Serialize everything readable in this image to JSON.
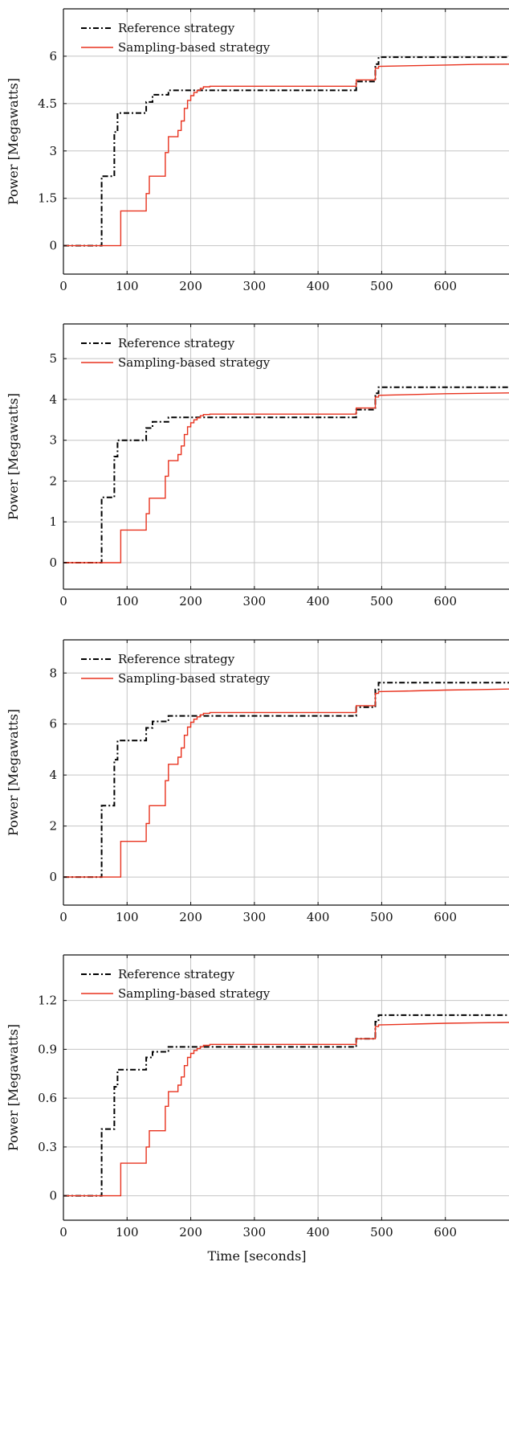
{
  "chart_data": [
    {
      "type": "line",
      "ylabel": "Power [Megawatts]",
      "xlabel": "",
      "xlim": [
        0,
        700
      ],
      "ylim": [
        -0.9,
        7.5
      ],
      "xticks": [
        0,
        100,
        200,
        300,
        400,
        500,
        600
      ],
      "yticks": [
        0,
        1.5,
        3,
        4.5,
        6
      ],
      "ytick_labels": [
        "0",
        "1.5",
        "3",
        "4.5",
        "6"
      ],
      "grid": true,
      "legend_position": "top-left",
      "series": [
        {
          "name": "Reference strategy",
          "color": "#000000",
          "style": "dash-dot",
          "x": [
            0,
            60,
            60,
            80,
            80,
            85,
            85,
            130,
            130,
            140,
            140,
            165,
            165,
            460,
            460,
            490,
            490,
            495,
            495,
            700
          ],
          "y": [
            0,
            0,
            2.2,
            2.2,
            3.6,
            3.6,
            4.2,
            4.2,
            4.55,
            4.55,
            4.78,
            4.78,
            4.92,
            4.92,
            5.2,
            5.2,
            5.75,
            5.75,
            5.97,
            5.97
          ]
        },
        {
          "name": "Sampling-based strategy",
          "color": "#e8321e",
          "style": "solid",
          "x": [
            0,
            90,
            90,
            130,
            130,
            135,
            135,
            160,
            160,
            165,
            165,
            180,
            180,
            185,
            185,
            190,
            190,
            195,
            195,
            200,
            200,
            205,
            205,
            210,
            210,
            215,
            215,
            220,
            220,
            230,
            230,
            460,
            460,
            490,
            490,
            495,
            495,
            550,
            600,
            650,
            700
          ],
          "y": [
            0,
            0,
            1.1,
            1.1,
            1.65,
            1.65,
            2.2,
            2.2,
            2.95,
            2.95,
            3.45,
            3.45,
            3.65,
            3.65,
            3.95,
            3.95,
            4.35,
            4.35,
            4.6,
            4.6,
            4.75,
            4.75,
            4.85,
            4.85,
            4.92,
            4.92,
            4.98,
            4.98,
            5.03,
            5.03,
            5.05,
            5.05,
            5.25,
            5.25,
            5.62,
            5.62,
            5.68,
            5.7,
            5.72,
            5.74,
            5.75
          ]
        }
      ]
    },
    {
      "type": "line",
      "ylabel": "Power [Megawatts]",
      "xlabel": "",
      "xlim": [
        0,
        700
      ],
      "ylim": [
        -0.65,
        5.85
      ],
      "xticks": [
        0,
        100,
        200,
        300,
        400,
        500,
        600
      ],
      "yticks": [
        0,
        1,
        2,
        3,
        4,
        5
      ],
      "ytick_labels": [
        "0",
        "1",
        "2",
        "3",
        "4",
        "5"
      ],
      "grid": true,
      "legend_position": "top-left",
      "series": [
        {
          "name": "Reference strategy",
          "color": "#000000",
          "style": "dash-dot",
          "x": [
            0,
            60,
            60,
            80,
            80,
            85,
            85,
            130,
            130,
            140,
            140,
            165,
            165,
            460,
            460,
            490,
            490,
            495,
            495,
            700
          ],
          "y": [
            0,
            0,
            1.6,
            1.6,
            2.6,
            2.6,
            3.0,
            3.0,
            3.3,
            3.3,
            3.45,
            3.45,
            3.56,
            3.56,
            3.75,
            3.75,
            4.15,
            4.15,
            4.3,
            4.3
          ]
        },
        {
          "name": "Sampling-based strategy",
          "color": "#e8321e",
          "style": "solid",
          "x": [
            0,
            90,
            90,
            130,
            130,
            135,
            135,
            160,
            160,
            165,
            165,
            180,
            180,
            185,
            185,
            190,
            190,
            195,
            195,
            200,
            200,
            205,
            205,
            210,
            210,
            215,
            215,
            220,
            220,
            230,
            230,
            460,
            460,
            490,
            490,
            495,
            495,
            550,
            600,
            650,
            700
          ],
          "y": [
            0,
            0,
            0.8,
            0.8,
            1.2,
            1.2,
            1.58,
            1.58,
            2.12,
            2.12,
            2.5,
            2.5,
            2.65,
            2.65,
            2.86,
            2.86,
            3.14,
            3.14,
            3.33,
            3.33,
            3.43,
            3.43,
            3.5,
            3.5,
            3.55,
            3.55,
            3.6,
            3.6,
            3.63,
            3.63,
            3.64,
            3.64,
            3.79,
            3.79,
            4.06,
            4.06,
            4.1,
            4.12,
            4.14,
            4.15,
            4.16
          ]
        }
      ]
    },
    {
      "type": "line",
      "ylabel": "Power [Megawatts]",
      "xlabel": "",
      "xlim": [
        0,
        700
      ],
      "ylim": [
        -1.1,
        9.3
      ],
      "xticks": [
        0,
        100,
        200,
        300,
        400,
        500,
        600
      ],
      "yticks": [
        0,
        2,
        4,
        6,
        8
      ],
      "ytick_labels": [
        "0",
        "2",
        "4",
        "6",
        "8"
      ],
      "grid": true,
      "legend_position": "top-left",
      "series": [
        {
          "name": "Reference strategy",
          "color": "#000000",
          "style": "dash-dot",
          "x": [
            0,
            60,
            60,
            80,
            80,
            85,
            85,
            130,
            130,
            140,
            140,
            165,
            165,
            460,
            460,
            490,
            490,
            495,
            495,
            700
          ],
          "y": [
            0,
            0,
            2.8,
            2.8,
            4.6,
            4.6,
            5.35,
            5.35,
            5.85,
            5.85,
            6.1,
            6.1,
            6.32,
            6.32,
            6.66,
            6.66,
            7.35,
            7.35,
            7.62,
            7.62
          ]
        },
        {
          "name": "Sampling-based strategy",
          "color": "#e8321e",
          "style": "solid",
          "x": [
            0,
            90,
            90,
            130,
            130,
            135,
            135,
            160,
            160,
            165,
            165,
            180,
            180,
            185,
            185,
            190,
            190,
            195,
            195,
            200,
            200,
            205,
            205,
            210,
            210,
            215,
            215,
            220,
            220,
            230,
            230,
            460,
            460,
            490,
            490,
            495,
            495,
            550,
            600,
            650,
            700
          ],
          "y": [
            0,
            0,
            1.4,
            1.4,
            2.1,
            2.1,
            2.8,
            2.8,
            3.78,
            3.78,
            4.42,
            4.42,
            4.7,
            4.7,
            5.06,
            5.06,
            5.56,
            5.56,
            5.88,
            5.88,
            6.07,
            6.07,
            6.19,
            6.19,
            6.28,
            6.28,
            6.36,
            6.36,
            6.42,
            6.42,
            6.45,
            6.45,
            6.72,
            6.72,
            7.2,
            7.2,
            7.27,
            7.3,
            7.33,
            7.35,
            7.37
          ]
        }
      ]
    },
    {
      "type": "line",
      "ylabel": "Power [Megawatts]",
      "xlabel": "Time [seconds]",
      "xlim": [
        0,
        700
      ],
      "ylim": [
        -0.15,
        1.48
      ],
      "xticks": [
        0,
        100,
        200,
        300,
        400,
        500,
        600
      ],
      "yticks": [
        0,
        0.3,
        0.6,
        0.9,
        1.2
      ],
      "ytick_labels": [
        "0",
        "0.3",
        "0.6",
        "0.9",
        "1.2"
      ],
      "grid": true,
      "legend_position": "top-left",
      "series": [
        {
          "name": "Reference strategy",
          "color": "#000000",
          "style": "dash-dot",
          "x": [
            0,
            60,
            60,
            80,
            80,
            85,
            85,
            130,
            130,
            140,
            140,
            165,
            165,
            460,
            460,
            490,
            490,
            495,
            495,
            700
          ],
          "y": [
            0,
            0,
            0.41,
            0.41,
            0.67,
            0.67,
            0.775,
            0.775,
            0.85,
            0.85,
            0.885,
            0.885,
            0.915,
            0.915,
            0.965,
            0.965,
            1.07,
            1.07,
            1.11,
            1.11
          ]
        },
        {
          "name": "Sampling-based strategy",
          "color": "#e8321e",
          "style": "solid",
          "x": [
            0,
            90,
            90,
            130,
            130,
            135,
            135,
            160,
            160,
            165,
            165,
            180,
            180,
            185,
            185,
            190,
            190,
            195,
            195,
            200,
            200,
            205,
            205,
            210,
            210,
            215,
            215,
            220,
            220,
            230,
            230,
            460,
            460,
            490,
            490,
            495,
            495,
            550,
            600,
            650,
            700
          ],
          "y": [
            0,
            0,
            0.2,
            0.2,
            0.3,
            0.3,
            0.4,
            0.4,
            0.55,
            0.55,
            0.64,
            0.64,
            0.68,
            0.68,
            0.73,
            0.73,
            0.8,
            0.8,
            0.85,
            0.85,
            0.875,
            0.875,
            0.893,
            0.893,
            0.905,
            0.905,
            0.916,
            0.916,
            0.925,
            0.925,
            0.93,
            0.93,
            0.965,
            0.965,
            1.04,
            1.04,
            1.05,
            1.055,
            1.06,
            1.063,
            1.065
          ]
        }
      ]
    }
  ]
}
